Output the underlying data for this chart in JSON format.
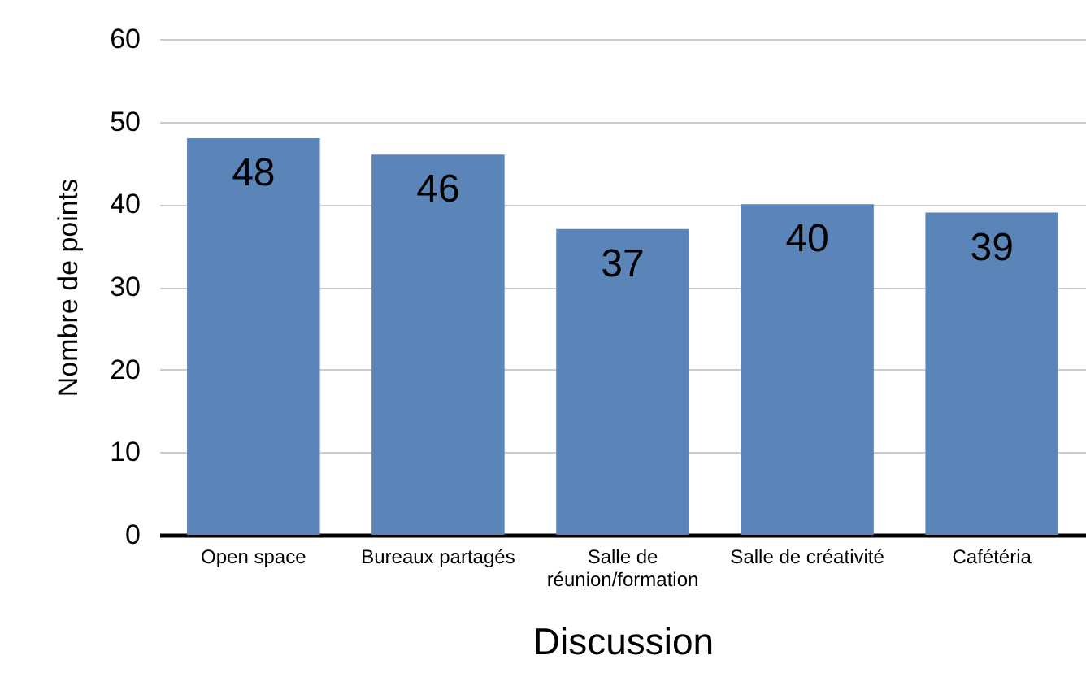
{
  "chart_data": {
    "type": "bar",
    "categories": [
      "Open space",
      "Bureaux partagés",
      "Salle de réunion/formation",
      "Salle de créativité",
      "Cafétéria"
    ],
    "values": [
      48,
      46,
      37,
      40,
      39
    ],
    "color": "#5b85b8",
    "xlabel": "Discussion",
    "ylabel": "Nombre de points",
    "ylim": [
      0,
      60
    ],
    "yticks": [
      0,
      10,
      20,
      30,
      40,
      50,
      60
    ],
    "grid": "y",
    "data_labels": true
  }
}
